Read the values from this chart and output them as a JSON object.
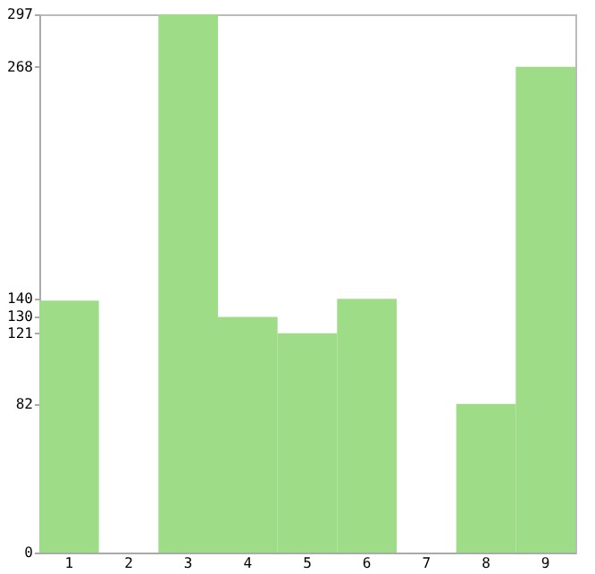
{
  "chart_data": {
    "type": "bar",
    "categories": [
      "1",
      "2",
      "3",
      "4",
      "5",
      "6",
      "7",
      "8",
      "9"
    ],
    "values": [
      139,
      0,
      297,
      130,
      121,
      140,
      0,
      82,
      268
    ],
    "color": "#9edc88",
    "ylim": [
      0,
      297
    ],
    "yticks": [
      0,
      82,
      121,
      130,
      140,
      268,
      297
    ],
    "grid": false
  }
}
